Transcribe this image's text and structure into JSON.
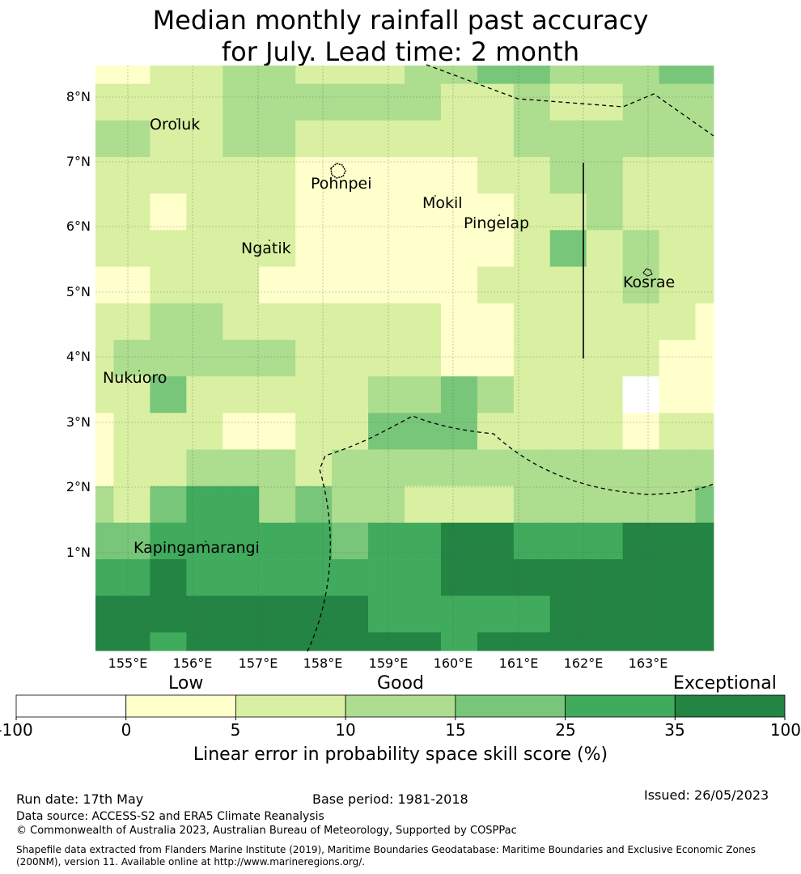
{
  "title": {
    "line1": "Median monthly rainfall past accuracy",
    "line2": "for July. Lead time: 2 month"
  },
  "axes": {
    "lat_labels": [
      "8°N",
      "7°N",
      "6°N",
      "5°N",
      "4°N",
      "3°N",
      "2°N",
      "1°N"
    ],
    "lon_labels": [
      "155°E",
      "156°E",
      "157°E",
      "158°E",
      "159°E",
      "160°E",
      "161°E",
      "162°E",
      "163°E"
    ]
  },
  "places": [
    {
      "name": "Oroluk"
    },
    {
      "name": "Pohnpei"
    },
    {
      "name": "Mokil"
    },
    {
      "name": "Pingelap"
    },
    {
      "name": "Ngatik"
    },
    {
      "name": "Kosrae"
    },
    {
      "name": "Nukuoro"
    },
    {
      "name": "Kapingamarangi"
    }
  ],
  "colors": {
    "palette": [
      "#ffffff",
      "#ffffcc",
      "#d9f0a3",
      "#addd8e",
      "#78c679",
      "#41ab5d",
      "#238443"
    ],
    "grid": "#555555",
    "boundary": "#000000"
  },
  "grid_levels": [
    "1 1 2 2 3 3 2 2 2 3 3 4 4 3 3 3 4 4",
    "2 2 2 2 3 3 3 3 3 3 2 2 3 2 2 3 3 3",
    "3 3 2 2 3 3 2 2 2 2 2 2 3 3 3 3 3 3",
    "2 2 2 2 2 2 1 1 1 1 1 2 2 3 3 2 2 2",
    "2 2 1 2 2 2 1 1 1 1 1 1 2 2 3 2 2 2",
    "2 2 2 2 2 2 1 1 1 1 1 1 2 4 2 3 2 2",
    "1 1 2 2 2 1 1 1 1 1 1 2 2 2 2 3 2 2",
    "2 2 3 3 2 2 2 2 2 2 1 1 2 2 2 2 2 1",
    "2 3 3 3 3 3 2 2 2 2 1 1 2 2 2 2 1 1",
    "2 2 4 2 2 2 2 2 3 3 4 3 2 2 2 0 1 1",
    "1 2 2 2 1 1 2 2 4 4 4 2 2 2 2 1 2 2",
    "1 2 2 3 3 3 2 3 3 3 3 3 3 3 3 3 3 3",
    "3 2 4 5 5 3 4 3 3 2 2 2 3 3 3 3 3 4",
    "4 4 5 5 5 5 5 4 5 5 6 6 5 5 5 6 6 6",
    "5 5 6 5 5 5 5 5 5 5 6 6 6 6 6 6 6 6",
    "6 6 6 6 6 6 6 6 5 5 5 5 5 6 6 6 6 6",
    "6 6 5 6 6 6 6 6 6 6 5 6 6 6 6 6 6 6",
    "6 5 6 6 6 5 6 6 6 6 6 6 6 6 5 6 6 6"
  ],
  "colorbar": {
    "category_labels": [
      "Low",
      "Good",
      "Exceptional"
    ],
    "ticks": [
      "-100",
      "0",
      "5",
      "10",
      "15",
      "25",
      "35",
      "100"
    ],
    "title": "Linear error in probability space skill score (%)"
  },
  "footer": {
    "run_date": "Run date: 17th May",
    "base_period": "Base period: 1981-2018",
    "issued": "Issued: 26/05/2023",
    "data_source": "Data source: ACCESS-S2 and ERA5 Climate Reanalysis",
    "copyright": "© Commonwealth of Australia 2023, Australian Bureau of Meteorology, Supported by COSPPac",
    "shapefile": "Shapefile data extracted from Flanders Marine Institute (2019), Maritime Boundaries Geodatabase: Maritime Boundaries and Exclusive Economic Zones (200NM), version 11. Available online at http://www.marineregions.org/."
  }
}
